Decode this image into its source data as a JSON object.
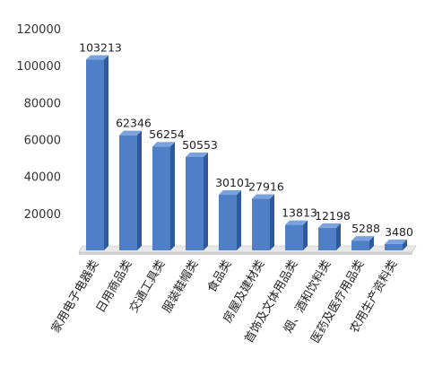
{
  "chart_data": {
    "type": "bar",
    "title": "",
    "xlabel": "",
    "ylabel": "",
    "categories": [
      "家用电子电器类",
      "日用商品类",
      "交通工具类",
      "服装鞋帽类",
      "食品类",
      "房屋及建材类",
      "首饰及文体用品类",
      "烟、酒和饮料类",
      "医药及医疗用品类",
      "农用生产资料类"
    ],
    "values": [
      103213,
      62346,
      56254,
      50553,
      30101,
      27916,
      13813,
      12198,
      5288,
      3480
    ],
    "data_labels": [
      "103213",
      "62346",
      "56254",
      "50553",
      "30101",
      "27916",
      "13813",
      "12198",
      "5288",
      "3480"
    ],
    "ylim": [
      0,
      120000
    ],
    "yticks": [
      20000,
      40000,
      60000,
      80000,
      100000,
      120000
    ],
    "ytick_labels": [
      "20000",
      "40000",
      "60000",
      "80000",
      "100000",
      "120000"
    ],
    "grid": false,
    "legend": "none",
    "bar_color": "#4f7fc6",
    "bar_top_color": "#7aa3dd",
    "bar_side_color": "#2e5a9c"
  }
}
